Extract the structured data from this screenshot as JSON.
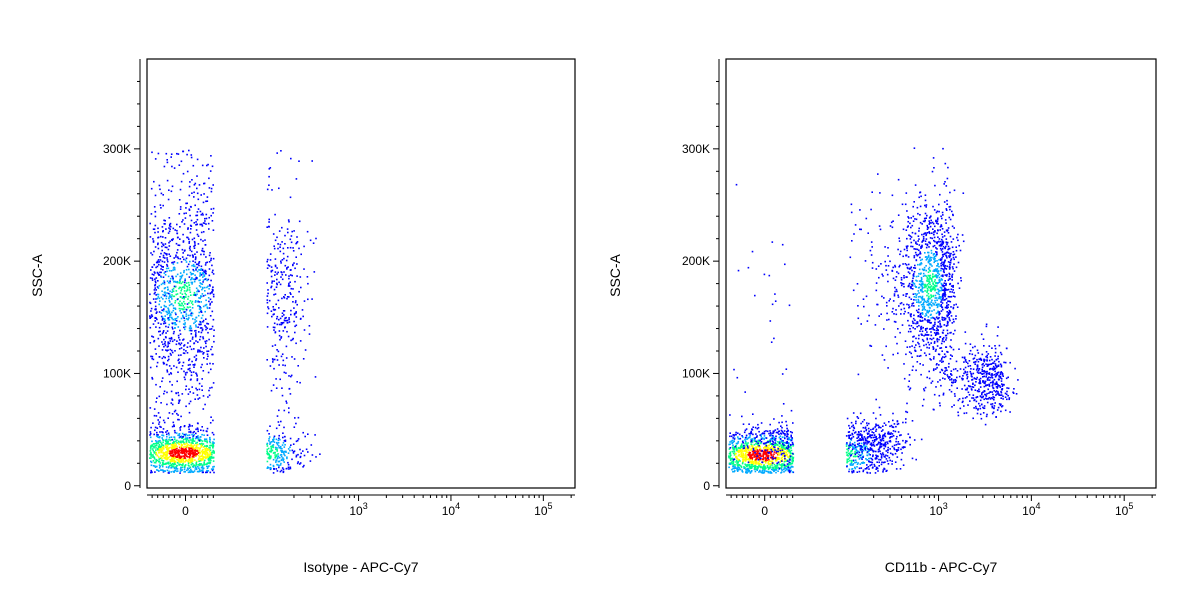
{
  "chart_data": [
    {
      "type": "scatter",
      "title": "",
      "xlabel": "Isotype - APC-Cy7",
      "ylabel": "SSC-A",
      "x_scale": "biexponential",
      "y_scale": "linear",
      "ylim": [
        -2000,
        380000
      ],
      "grid": false,
      "x_ticks": [
        {
          "label": "0",
          "value": 0
        },
        {
          "label": "10",
          "sup": "3",
          "value": 1000
        },
        {
          "label": "10",
          "sup": "4",
          "value": 10000
        },
        {
          "label": "10",
          "sup": "5",
          "value": 100000
        }
      ],
      "y_ticks": [
        "0",
        "100K",
        "200K",
        "300K"
      ],
      "y_tick_values": [
        0,
        100000,
        200000,
        300000
      ],
      "colormap": [
        "#0000ff",
        "#00aaff",
        "#00ff88",
        "#ffff00",
        "#ff0000"
      ],
      "populations": [
        {
          "x_center": -10,
          "x_sd": 110,
          "y_center": 30000,
          "y_sd": 10000,
          "density": "peak"
        },
        {
          "x_center": -10,
          "x_sd": 120,
          "y_center": 170000,
          "y_sd": 40000,
          "density": "medium"
        },
        {
          "x_center": -10,
          "x_sd": 120,
          "y_range": [
            40000,
            300000
          ],
          "density": "low"
        }
      ]
    },
    {
      "type": "scatter",
      "title": "",
      "xlabel": "CD11b - APC-Cy7",
      "ylabel": "SSC-A",
      "x_scale": "biexponential",
      "y_scale": "linear",
      "ylim": [
        -2000,
        380000
      ],
      "grid": false,
      "x_ticks": [
        {
          "label": "0",
          "value": 0
        },
        {
          "label": "10",
          "sup": "3",
          "value": 1000
        },
        {
          "label": "10",
          "sup": "4",
          "value": 10000
        },
        {
          "label": "10",
          "sup": "5",
          "value": 100000
        }
      ],
      "y_ticks": [
        "0",
        "100K",
        "200K",
        "300K"
      ],
      "y_tick_values": [
        0,
        100000,
        200000,
        300000
      ],
      "colormap": [
        "#0000ff",
        "#00aaff",
        "#00ff88",
        "#ffff00",
        "#ff0000"
      ],
      "populations": [
        {
          "x_center": -10,
          "x_sd": 110,
          "y_center": 28000,
          "y_sd": 10000,
          "density": "peak"
        },
        {
          "x_center": 150,
          "x_sd": 150,
          "y_center": 40000,
          "y_sd": 12000,
          "density": "low"
        },
        {
          "x_center": 800,
          "x_sd": 350,
          "y_center": 180000,
          "y_sd": 38000,
          "density": "medium"
        },
        {
          "x_center": 3000,
          "x_sd": 1200,
          "y_center": 95000,
          "y_sd": 15000,
          "density": "low"
        }
      ]
    }
  ]
}
